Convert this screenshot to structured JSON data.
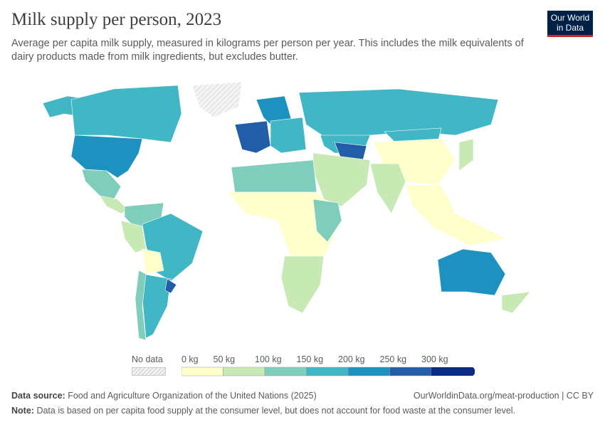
{
  "header": {
    "title": "Milk supply per person, 2023",
    "subtitle": "Average per capita milk supply, measured in kilograms per person per year. This includes the milk equivalents of dairy products made from milk ingredients, but excludes butter.",
    "logo": "Our World in Data"
  },
  "legend": {
    "no_data": "No data",
    "labels": [
      "0 kg",
      "50 kg",
      "100 kg",
      "150 kg",
      "200 kg",
      "250 kg",
      "300 kg"
    ],
    "colors": [
      "#ffffcc",
      "#c7e9b4",
      "#7fcdbb",
      "#41b6c4",
      "#1d91c0",
      "#225ea8",
      "#0c2c84"
    ],
    "no_data_color": "#e8e8e8"
  },
  "map": {
    "unit": "kg",
    "regions": [
      {
        "name": "Alaska",
        "bin": 3
      },
      {
        "name": "Canada",
        "bin": 3
      },
      {
        "name": "United States",
        "bin": 4
      },
      {
        "name": "Mexico",
        "bin": 2
      },
      {
        "name": "Central America",
        "bin": 1
      },
      {
        "name": "Greenland",
        "bin": -1
      },
      {
        "name": "Colombia/Venezuela",
        "bin": 2
      },
      {
        "name": "Brazil",
        "bin": 3
      },
      {
        "name": "Peru",
        "bin": 1
      },
      {
        "name": "Bolivia",
        "bin": 0
      },
      {
        "name": "Argentina",
        "bin": 3
      },
      {
        "name": "Chile",
        "bin": 2
      },
      {
        "name": "Uruguay",
        "bin": 5
      },
      {
        "name": "Western Europe",
        "bin": 5
      },
      {
        "name": "Northern Europe",
        "bin": 4
      },
      {
        "name": "Eastern Europe",
        "bin": 3
      },
      {
        "name": "Russia",
        "bin": 3
      },
      {
        "name": "Kazakhstan",
        "bin": 3
      },
      {
        "name": "Central Asia",
        "bin": 5
      },
      {
        "name": "Mongolia",
        "bin": 3
      },
      {
        "name": "China",
        "bin": 0
      },
      {
        "name": "India",
        "bin": 1
      },
      {
        "name": "Southeast Asia",
        "bin": 0
      },
      {
        "name": "Japan",
        "bin": 1
      },
      {
        "name": "Middle East",
        "bin": 1
      },
      {
        "name": "North Africa",
        "bin": 2
      },
      {
        "name": "Sub-Saharan Africa",
        "bin": 0
      },
      {
        "name": "East Africa",
        "bin": 2
      },
      {
        "name": "Southern Africa",
        "bin": 1
      },
      {
        "name": "Australia",
        "bin": 4
      },
      {
        "name": "New Zealand",
        "bin": 1
      }
    ]
  },
  "footer": {
    "source_label": "Data source:",
    "source": "Food and Agriculture Organization of the United Nations (2025)",
    "url": "OurWorldinData.org/meat-production | CC BY",
    "note_label": "Note:",
    "note": "Data is based on per capita food supply at the consumer level, but does not account for food waste at the consumer level."
  }
}
